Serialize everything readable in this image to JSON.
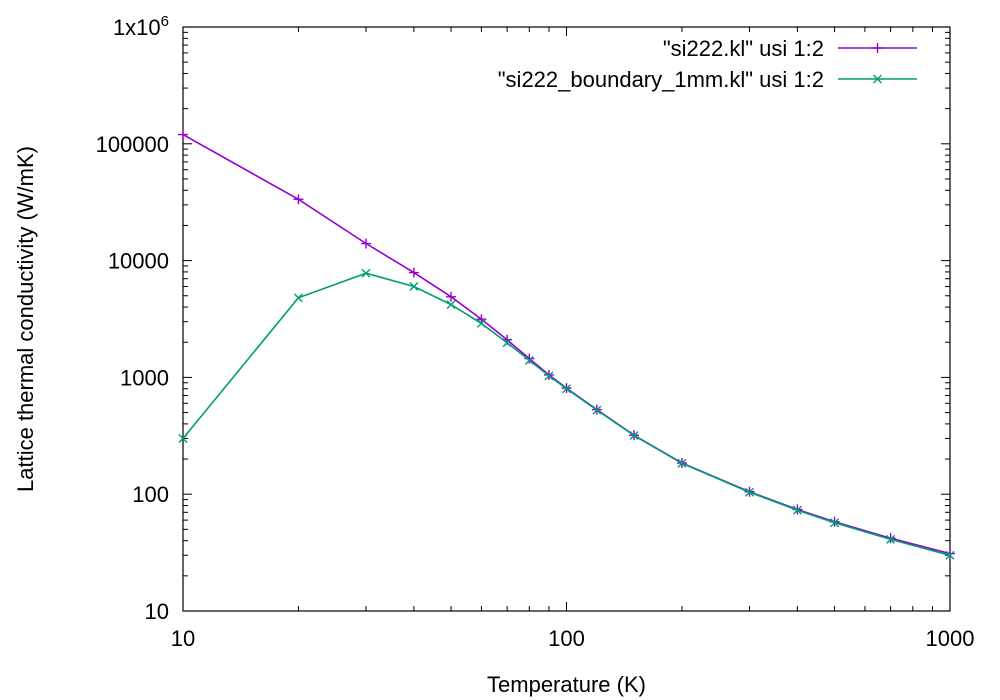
{
  "chart_data": {
    "type": "line",
    "title": "",
    "xlabel": "Temperature (K)",
    "ylabel": "Lattice thermal conductivity (W/mK)",
    "xscale": "log",
    "yscale": "log",
    "xlim": [
      10,
      1000
    ],
    "ylim": [
      10,
      1000000
    ],
    "x_ticks": [
      {
        "value": 10,
        "label": "10"
      },
      {
        "value": 100,
        "label": "100"
      },
      {
        "value": 1000,
        "label": "1000"
      }
    ],
    "y_ticks": [
      {
        "value": 10,
        "label": "10"
      },
      {
        "value": 100,
        "label": "100"
      },
      {
        "value": 1000,
        "label": "1000"
      },
      {
        "value": 10000,
        "label": "10000"
      },
      {
        "value": 100000,
        "label": "100000"
      },
      {
        "value": 1000000,
        "label": "1x10",
        "sup": "6"
      }
    ],
    "grid": false,
    "legend_position": "top-right",
    "series": [
      {
        "name": "\"si222.kl\" usi 1:2",
        "color": "#9400d3",
        "marker": "plus",
        "x": [
          10,
          20,
          30,
          40,
          50,
          60,
          70,
          80,
          90,
          100,
          120,
          150,
          200,
          300,
          400,
          500,
          700,
          1000
        ],
        "y": [
          120000,
          33500,
          14000,
          7900,
          4900,
          3150,
          2100,
          1450,
          1050,
          810,
          530,
          320,
          185,
          105,
          74,
          58,
          42,
          31
        ]
      },
      {
        "name": "\"si222_boundary_1mm.kl\" usi 1:2",
        "color": "#009e73",
        "marker": "x",
        "x": [
          10,
          20,
          30,
          40,
          50,
          60,
          70,
          80,
          90,
          100,
          120,
          150,
          200,
          300,
          400,
          500,
          700,
          1000
        ],
        "y": [
          300,
          4800,
          7800,
          6000,
          4200,
          2900,
          1980,
          1400,
          1030,
          800,
          525,
          318,
          184,
          104,
          73,
          57,
          41,
          30
        ]
      }
    ]
  }
}
